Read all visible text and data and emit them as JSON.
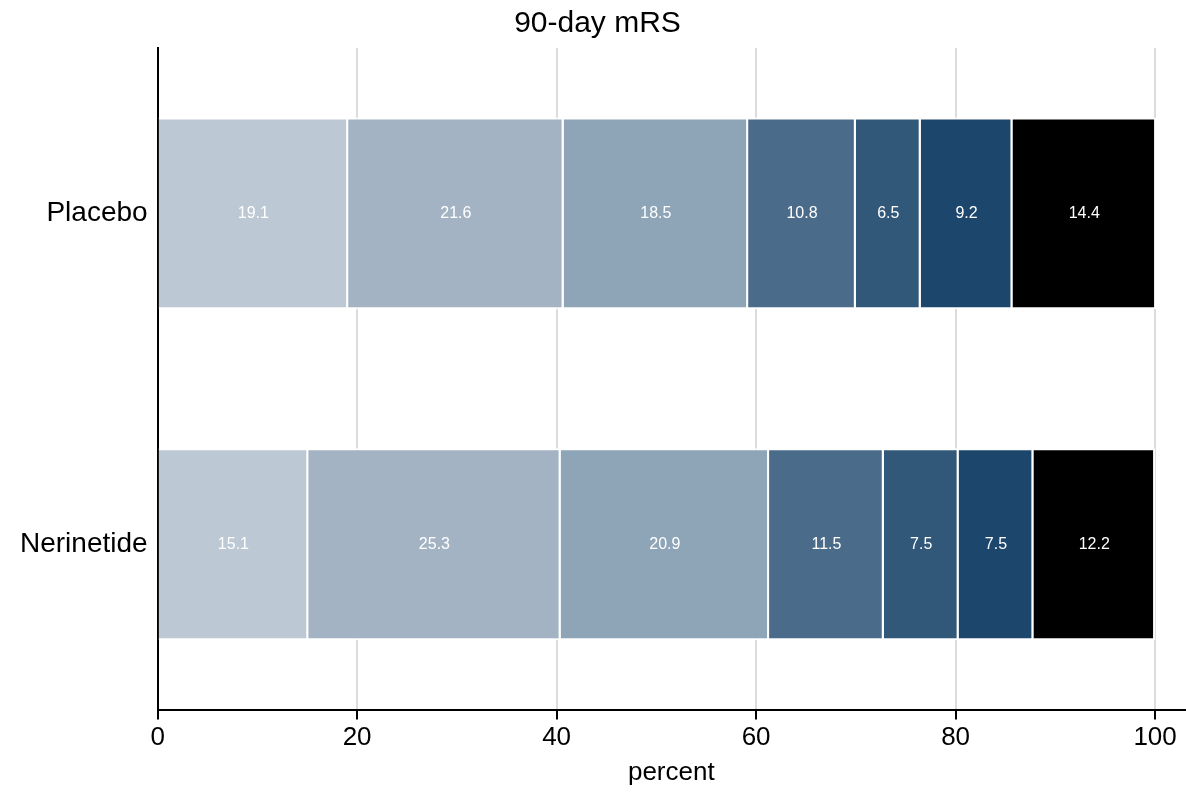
{
  "chart_data": {
    "type": "bar",
    "orientation": "horizontal",
    "stacked": true,
    "title": "90-day mRS",
    "xlabel": "percent",
    "categories": [
      "Placebo",
      "Nerinetide"
    ],
    "series": [
      {
        "color": "#bcc8d3",
        "values": [
          19.1,
          15.1
        ]
      },
      {
        "color": "#a3b3c3",
        "values": [
          21.6,
          25.3
        ]
      },
      {
        "color": "#8ea4b7",
        "values": [
          18.5,
          20.9
        ]
      },
      {
        "color": "#4a6b8a",
        "values": [
          10.8,
          11.5
        ]
      },
      {
        "color": "#325879",
        "values": [
          6.5,
          7.5
        ]
      },
      {
        "color": "#1d466c",
        "values": [
          9.2,
          7.5
        ]
      },
      {
        "color": "#000000",
        "values": [
          14.4,
          12.2
        ]
      }
    ],
    "xlim": [
      0,
      103
    ],
    "xticks": [
      0,
      20,
      40,
      60,
      80,
      100
    ],
    "grid": "x",
    "legend": false,
    "data_labels": true
  }
}
